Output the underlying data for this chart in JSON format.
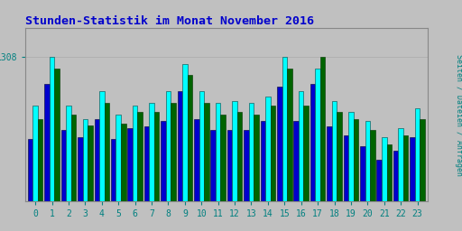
{
  "title": "Stunden-Statistik im Monat November 2016",
  "ylabel_rotated": "Seiten / Dateien / Anfragen",
  "xlabel_values": [
    0,
    1,
    2,
    3,
    4,
    5,
    6,
    7,
    8,
    9,
    10,
    11,
    12,
    13,
    14,
    15,
    16,
    17,
    18,
    19,
    20,
    21,
    22,
    23
  ],
  "ytick_label": "1308",
  "background_color": "#c0c0c0",
  "plot_bg_color": "#c0c0c0",
  "bar_width": 0.3,
  "title_color": "#0000cc",
  "ylabel_color": "#008080",
  "ytick_color": "#008080",
  "xtick_color": "#008080",
  "colors": [
    "#00ffff",
    "#006400",
    "#0000cd"
  ],
  "series_names": [
    "Dateien",
    "Seiten",
    "Anfragen"
  ],
  "dateien": [
    1255,
    1308,
    1255,
    1240,
    1270,
    1245,
    1255,
    1258,
    1270,
    1300,
    1270,
    1258,
    1260,
    1258,
    1265,
    1308,
    1270,
    1295,
    1260,
    1248,
    1238,
    1220,
    1230,
    1252
  ],
  "seiten": [
    1240,
    1295,
    1245,
    1233,
    1258,
    1235,
    1248,
    1248,
    1258,
    1288,
    1258,
    1245,
    1248,
    1245,
    1255,
    1295,
    1255,
    1308,
    1248,
    1240,
    1228,
    1212,
    1222,
    1240
  ],
  "anfragen": [
    1218,
    1278,
    1228,
    1220,
    1240,
    1218,
    1230,
    1232,
    1238,
    1270,
    1240,
    1228,
    1228,
    1228,
    1238,
    1275,
    1238,
    1278,
    1232,
    1222,
    1210,
    1195,
    1205,
    1220
  ],
  "ylim_min": 1150,
  "ylim_max": 1340
}
